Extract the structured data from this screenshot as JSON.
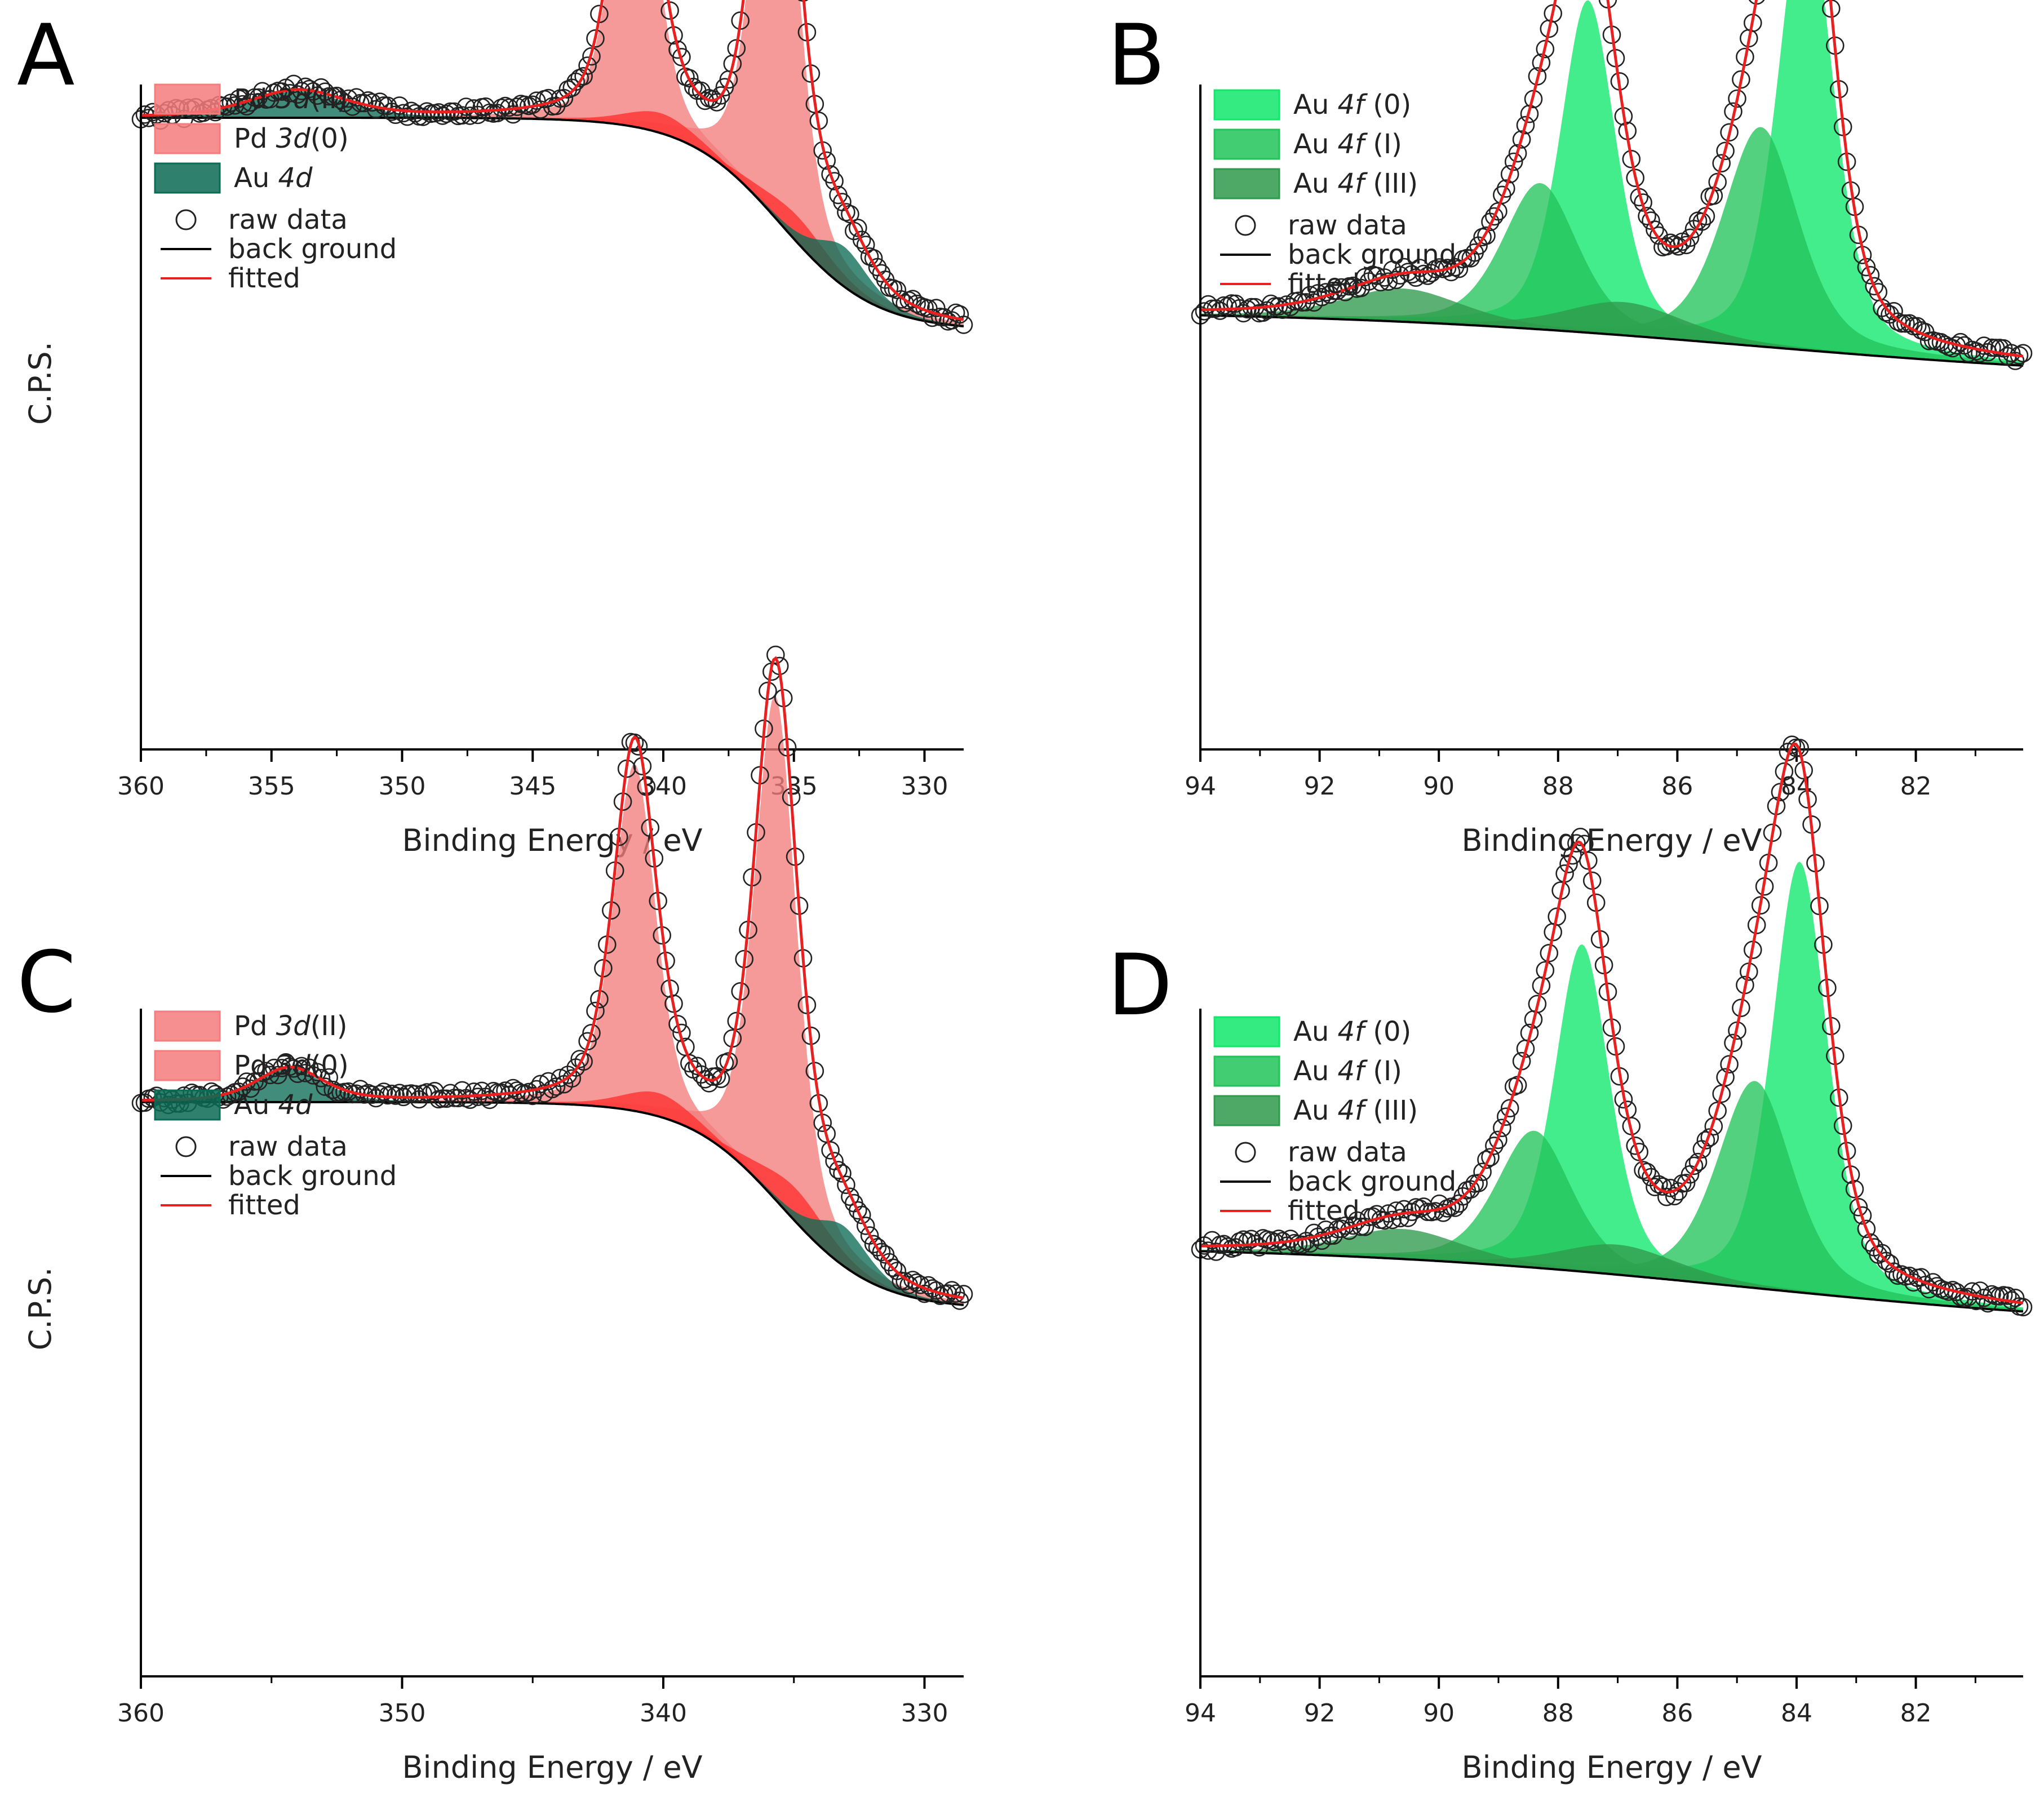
{
  "colors": {
    "pd_fill": "#f47c7c",
    "pd_fill_dark": "#ff3030",
    "au4d_fill": "#0b6b55",
    "au0_fill": "#10e86c",
    "au1_fill": "#22c45a",
    "au3_fill": "#2f9a4c",
    "fit_line": "#e82020",
    "bg_line": "#000000",
    "raw_marker": "#222222"
  },
  "chart_data": [
    {
      "type": "line",
      "panel": "A",
      "xlabel": "Binding Energy / eV",
      "ylabel": "C.P.S.",
      "xlim": [
        360,
        328.5
      ],
      "xticks": [
        360,
        355,
        350,
        345,
        340,
        335,
        330
      ],
      "xtick_labels": [
        "360",
        "355",
        "350",
        "345",
        "340",
        "335",
        "330"
      ],
      "legend": {
        "location": "top-left",
        "patches": [
          {
            "label_main": "Pd ",
            "label_italic": "3d",
            "label_tail": "(II)",
            "color_key": "pd_fill"
          },
          {
            "label_main": "Pd ",
            "label_italic": "3d",
            "label_tail": "(0)",
            "color_key": "pd_fill"
          },
          {
            "label_main": "Au ",
            "label_italic": "4d",
            "label_tail": "",
            "color_key": "au4d_fill"
          }
        ],
        "lines": [
          {
            "label": "raw data",
            "kind": "marker"
          },
          {
            "label": "back ground",
            "kind": "bg"
          },
          {
            "label": "fitted",
            "kind": "fit"
          }
        ]
      },
      "background": {
        "low": 0.63,
        "high": 0.95,
        "center": 335.5,
        "width": 1.8
      },
      "components": [
        {
          "name": "Pd 3d(II) 5/2",
          "center": 335.7,
          "height": 0.73,
          "width": 0.95,
          "color_key": "pd_fill"
        },
        {
          "name": "Pd 3d(II) 3/2",
          "center": 341.1,
          "height": 0.495,
          "width": 0.95,
          "color_key": "pd_fill"
        },
        {
          "name": "Pd 3d(0) 5/2",
          "center": 334.8,
          "height": 0.04,
          "width": 1.6,
          "color_key": "pd_fill_dark"
        },
        {
          "name": "Pd 3d(0) 3/2",
          "center": 340.1,
          "height": 0.03,
          "width": 1.6,
          "color_key": "pd_fill_dark"
        },
        {
          "name": "Au 4d 5/2",
          "center": 333.1,
          "height": 0.06,
          "width": 1.2,
          "color_key": "au4d_fill"
        },
        {
          "name": "Au 4d 3/2",
          "center": 354.0,
          "height": 0.04,
          "width": 2.2,
          "color_key": "au4d_fill"
        }
      ]
    },
    {
      "type": "line",
      "panel": "B",
      "xlabel": "Binding Energy / eV",
      "ylabel": "",
      "xlim": [
        94,
        80.2
      ],
      "xticks": [
        94,
        92,
        90,
        88,
        86,
        84,
        82
      ],
      "xtick_labels": [
        "94",
        "92",
        "90",
        "88",
        "86",
        "84",
        "82"
      ],
      "legend": {
        "location": "top-left",
        "patches": [
          {
            "label_main": "Au ",
            "label_italic": "4f",
            "label_tail": " (0)",
            "color_key": "au0_fill"
          },
          {
            "label_main": "Au ",
            "label_italic": "4f",
            "label_tail": " (I)",
            "color_key": "au1_fill"
          },
          {
            "label_main": "Au ",
            "label_italic": "4f",
            "label_tail": " (III)",
            "color_key": "au3_fill"
          }
        ],
        "lines": [
          {
            "label": "raw data",
            "kind": "marker"
          },
          {
            "label": "back ground",
            "kind": "bg"
          },
          {
            "label": "fitted",
            "kind": "fit"
          }
        ]
      },
      "background": {
        "low": 0.555,
        "high": 0.66,
        "center": 84.8,
        "width": 3.5
      },
      "components": [
        {
          "name": "Au 4f(0) 7/2",
          "center": 83.85,
          "height": 0.68,
          "width": 0.55,
          "color_key": "au0_fill"
        },
        {
          "name": "Au 4f(0) 5/2",
          "center": 87.5,
          "height": 0.5,
          "width": 0.55,
          "color_key": "au0_fill"
        },
        {
          "name": "Au 4f(I) 7/2",
          "center": 84.6,
          "height": 0.33,
          "width": 0.75,
          "color_key": "au1_fill"
        },
        {
          "name": "Au 4f(I) 5/2",
          "center": 88.3,
          "height": 0.22,
          "width": 0.75,
          "color_key": "au1_fill"
        },
        {
          "name": "Au 4f(III) 7/2",
          "center": 86.9,
          "height": 0.05,
          "width": 1.2,
          "color_key": "au3_fill"
        },
        {
          "name": "Au 4f(III) 5/2",
          "center": 90.6,
          "height": 0.05,
          "width": 1.2,
          "color_key": "au3_fill"
        }
      ]
    },
    {
      "type": "line",
      "panel": "C",
      "xlabel": "Binding Energy / eV",
      "ylabel": "C.P.S.",
      "xlim": [
        360,
        328.5
      ],
      "xticks": [
        360,
        350,
        340,
        330
      ],
      "xtick_labels": [
        "360",
        "350",
        "340",
        "330"
      ],
      "legend": {
        "location": "top-left",
        "patches": [
          {
            "label_main": "Pd ",
            "label_italic": "3d",
            "label_tail": "(II)",
            "color_key": "pd_fill"
          },
          {
            "label_main": "Pd ",
            "label_italic": "3d",
            "label_tail": "(0)",
            "color_key": "pd_fill"
          },
          {
            "label_main": "Au ",
            "label_italic": "4d",
            "label_tail": "",
            "color_key": "au4d_fill"
          }
        ],
        "lines": [
          {
            "label": "raw data",
            "kind": "marker"
          },
          {
            "label": "back ground",
            "kind": "bg"
          },
          {
            "label": "fitted",
            "kind": "fit"
          }
        ]
      },
      "background": {
        "low": 0.55,
        "high": 0.86,
        "center": 335.5,
        "width": 1.8
      },
      "components": [
        {
          "name": "Pd 3d(II) 5/2",
          "center": 335.7,
          "height": 0.755,
          "width": 0.95,
          "color_key": "pd_fill"
        },
        {
          "name": "Pd 3d(II) 3/2",
          "center": 341.1,
          "height": 0.52,
          "width": 0.95,
          "color_key": "pd_fill"
        },
        {
          "name": "Pd 3d(0) 5/2",
          "center": 334.9,
          "height": 0.05,
          "width": 1.6,
          "color_key": "pd_fill_dark"
        },
        {
          "name": "Pd 3d(0) 3/2",
          "center": 340.2,
          "height": 0.035,
          "width": 1.6,
          "color_key": "pd_fill_dark"
        },
        {
          "name": "Au 4d 5/2",
          "center": 333.1,
          "height": 0.06,
          "width": 1.2,
          "color_key": "au4d_fill"
        },
        {
          "name": "Au 4d 3/2",
          "center": 354.3,
          "height": 0.05,
          "width": 1.5,
          "color_key": "au4d_fill"
        }
      ]
    },
    {
      "type": "line",
      "panel": "D",
      "xlabel": "Binding Energy / eV",
      "ylabel": "",
      "xlim": [
        94,
        80.2
      ],
      "xticks": [
        94,
        92,
        90,
        88,
        86,
        84,
        82
      ],
      "xtick_labels": [
        "94",
        "92",
        "90",
        "88",
        "86",
        "84",
        "82"
      ],
      "legend": {
        "location": "top-left",
        "patches": [
          {
            "label_main": "Au ",
            "label_italic": "4f",
            "label_tail": " (0)",
            "color_key": "au0_fill"
          },
          {
            "label_main": "Au ",
            "label_italic": "4f",
            "label_tail": " (I)",
            "color_key": "au1_fill"
          },
          {
            "label_main": "Au ",
            "label_italic": "4f",
            "label_tail": " (III)",
            "color_key": "au3_fill"
          }
        ],
        "lines": [
          {
            "label": "raw data",
            "kind": "marker"
          },
          {
            "label": "back ground",
            "kind": "bg"
          },
          {
            "label": "fitted",
            "kind": "fit"
          }
        ]
      },
      "background": {
        "low": 0.52,
        "high": 0.645,
        "center": 84.8,
        "width": 3.5
      },
      "components": [
        {
          "name": "Au 4f(0) 7/2",
          "center": 83.95,
          "height": 0.645,
          "width": 0.55,
          "color_key": "au0_fill"
        },
        {
          "name": "Au 4f(0) 5/2",
          "center": 87.6,
          "height": 0.49,
          "width": 0.55,
          "color_key": "au0_fill"
        },
        {
          "name": "Au 4f(I) 7/2",
          "center": 84.7,
          "height": 0.31,
          "width": 0.75,
          "color_key": "au1_fill"
        },
        {
          "name": "Au 4f(I) 5/2",
          "center": 88.4,
          "height": 0.205,
          "width": 0.75,
          "color_key": "au1_fill"
        },
        {
          "name": "Au 4f(III) 7/2",
          "center": 87.0,
          "height": 0.045,
          "width": 1.2,
          "color_key": "au3_fill"
        },
        {
          "name": "Au 4f(III) 5/2",
          "center": 90.6,
          "height": 0.045,
          "width": 1.2,
          "color_key": "au3_fill"
        }
      ]
    }
  ]
}
